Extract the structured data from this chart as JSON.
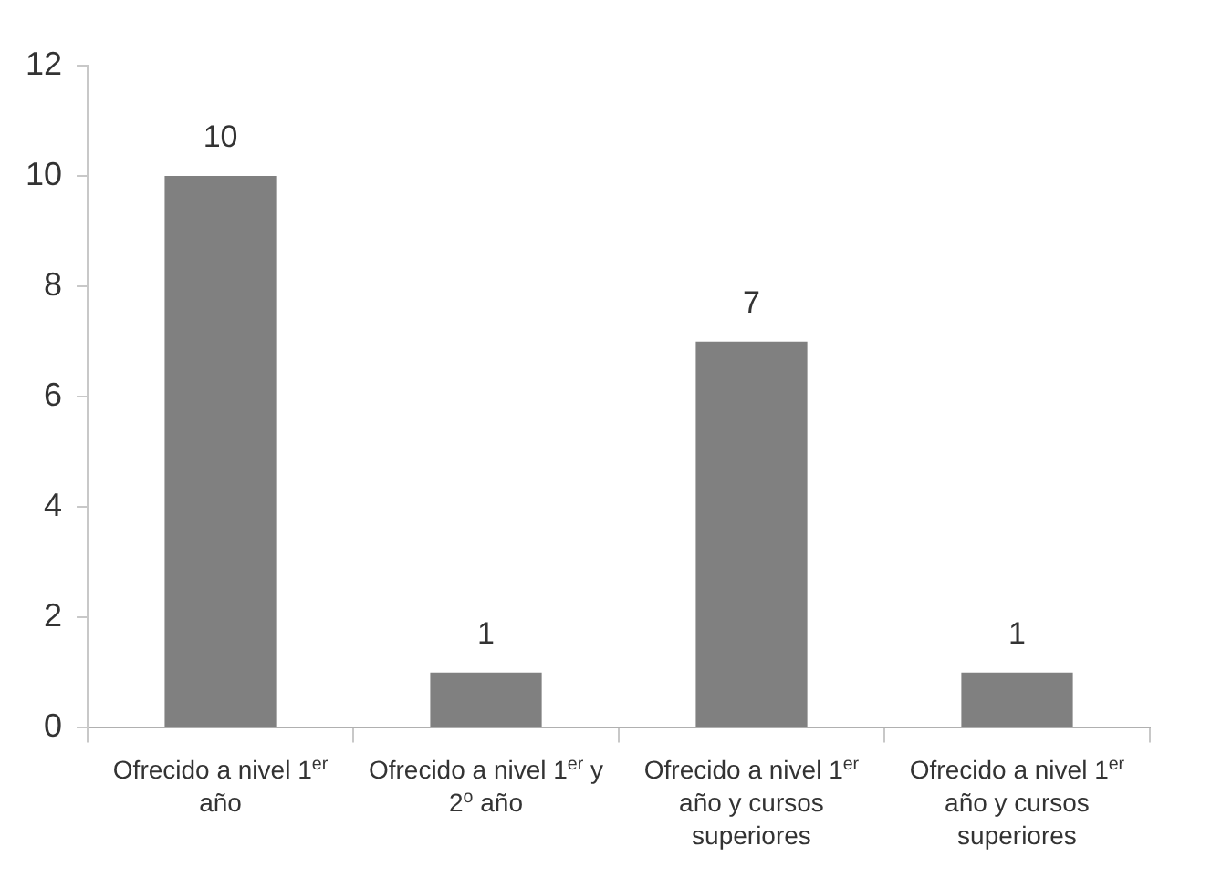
{
  "chart_data": {
    "type": "bar",
    "categories": [
      "Ofrecido a nivel 1$^{er}$ año",
      "Ofrecido a nivel 1$^{er}$ y 2$^{o}$ año",
      "Ofrecido a nivel 1$^{er}$ año y cursos superiores",
      "Ofrecido a nivel 1$^{er}$ año y cursos superiores"
    ],
    "values": [
      10,
      1,
      7,
      1
    ],
    "color": "#808080",
    "ylim": [
      0,
      12
    ],
    "yticks": [
      0,
      2,
      4,
      6,
      8,
      10,
      12
    ],
    "data_labels": true
  }
}
